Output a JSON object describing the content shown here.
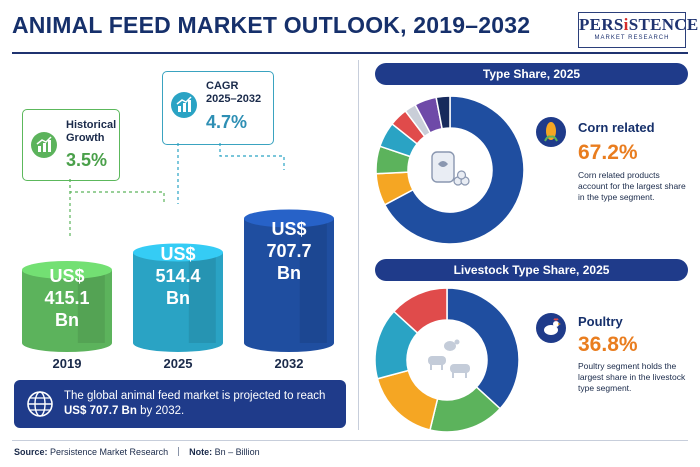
{
  "header": {
    "title": "ANIMAL FEED MARKET OUTLOOK, 2019–2032",
    "logo_main_a": "PERS",
    "logo_main_i": "i",
    "logo_main_b": "STENCE",
    "logo_sub": "MARKET RESEARCH"
  },
  "callouts": {
    "historical": {
      "label_line1": "Historical",
      "label_line2": "Growth",
      "value": "3.5%"
    },
    "cagr": {
      "label_line1": "CAGR",
      "label_line2": "2025–2032",
      "value": "4.7%"
    }
  },
  "market_chart": {
    "bars": [
      {
        "year": "2019",
        "currency": "US$",
        "amount": "415.1",
        "unit": "Bn",
        "value": 415.1,
        "color": "#5cb35c"
      },
      {
        "year": "2025",
        "currency": "US$",
        "amount": "514.4",
        "unit": "Bn",
        "value": 514.4,
        "color": "#2aa3c4"
      },
      {
        "year": "2032",
        "currency": "US$",
        "amount": "707.7",
        "unit": "Bn",
        "value": 707.7,
        "color": "#1f4ea0"
      }
    ]
  },
  "summary": {
    "text_before": "The global animal feed market is projected to reach ",
    "text_bold": "US$ 707.7 Bn",
    "text_after": " by 2032."
  },
  "type_share": {
    "title": "Type Share, 2025",
    "highlight_label": "Corn related",
    "highlight_value": "67.2%",
    "highlight_desc": "Corn related products account for the largest share in the type segment."
  },
  "livestock_share": {
    "title": "Livestock Type Share, 2025",
    "highlight_label": "Poultry",
    "highlight_value": "36.8%",
    "highlight_desc": "Poultry segment holds the largest share in the livestock type segment."
  },
  "chart_data": [
    {
      "type": "bar",
      "title": "",
      "categories": [
        "2019",
        "2025",
        "2032"
      ],
      "values": [
        415.1,
        514.4,
        707.7
      ],
      "ylabel": "",
      "xlabel": "",
      "annotations": [
        "Historical Growth 3.5%",
        "CAGR 2025–2032 4.7%"
      ]
    },
    {
      "type": "pie",
      "title": "Type Share, 2025",
      "slices": [
        {
          "label": "Corn related",
          "value": 67.2,
          "color": "#1f4ea0"
        },
        {
          "label": "",
          "value": 7.0,
          "color": "#f5a623"
        },
        {
          "label": "",
          "value": 6.0,
          "color": "#5cb35c"
        },
        {
          "label": "",
          "value": 5.5,
          "color": "#2aa3c4"
        },
        {
          "label": "",
          "value": 4.0,
          "color": "#e04b4b"
        },
        {
          "label": "",
          "value": 2.5,
          "color": "#c9ced8"
        },
        {
          "label": "",
          "value": 4.8,
          "color": "#6e4aa8"
        },
        {
          "label": "",
          "value": 3.0,
          "color": "#172a5c"
        }
      ]
    },
    {
      "type": "pie",
      "title": "Livestock Type Share, 2025",
      "slices": [
        {
          "label": "Poultry",
          "value": 36.8,
          "color": "#1f4ea0"
        },
        {
          "label": "",
          "value": 17.0,
          "color": "#5cb35c"
        },
        {
          "label": "",
          "value": 17.0,
          "color": "#f5a623"
        },
        {
          "label": "",
          "value": 16.0,
          "color": "#2aa3c4"
        },
        {
          "label": "",
          "value": 13.2,
          "color": "#e04b4b"
        }
      ]
    }
  ],
  "footer": {
    "source_label": "Source:",
    "source_text": "Persistence Market Research",
    "note_label": "Note:",
    "note_text": "Bn – Billion"
  }
}
